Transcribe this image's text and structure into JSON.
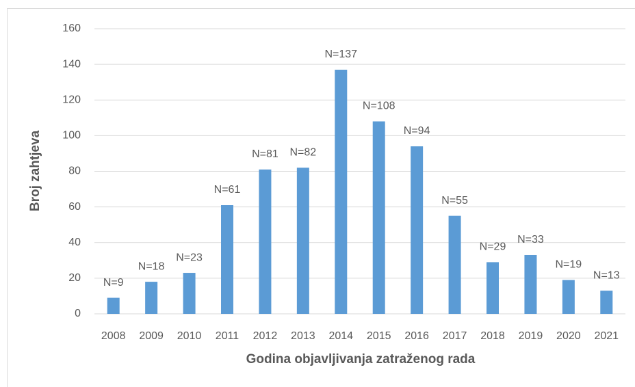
{
  "chart_data": {
    "type": "bar",
    "xlabel": "Godina objavljivanja zatraženog rada",
    "ylabel": "Broj zahtjeva",
    "categories": [
      "2008",
      "2009",
      "2010",
      "2011",
      "2012",
      "2013",
      "2014",
      "2015",
      "2016",
      "2017",
      "2018",
      "2019",
      "2020",
      "2021"
    ],
    "values": [
      9,
      18,
      23,
      61,
      81,
      82,
      137,
      108,
      94,
      55,
      29,
      33,
      19,
      13
    ],
    "value_labels": [
      "N=9",
      "N=18",
      "N=23",
      "N=61",
      "N=81",
      "N=82",
      "N=137",
      "N=108",
      "N=94",
      "N=55",
      "N=29",
      "N=33",
      "N=19",
      "N=13"
    ],
    "color": "#5b9bd5",
    "ylim": [
      0,
      160
    ],
    "yticks": [
      0,
      20,
      40,
      60,
      80,
      100,
      120,
      140,
      160
    ],
    "grid": true
  }
}
